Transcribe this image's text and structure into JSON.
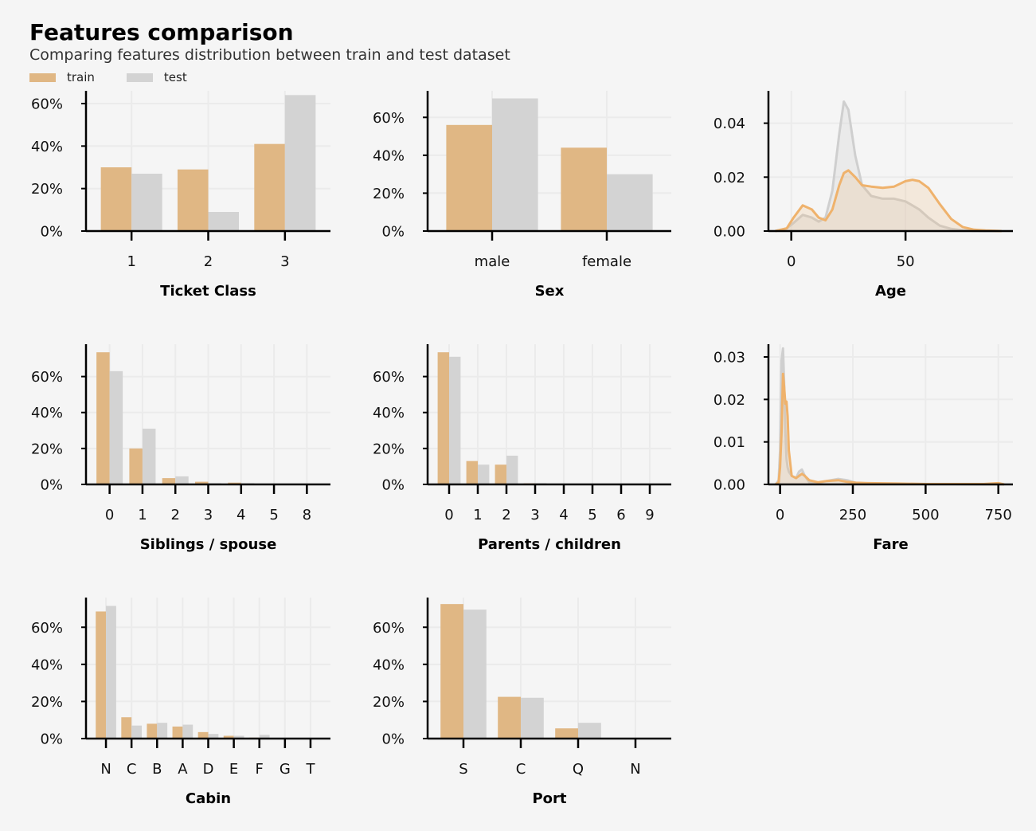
{
  "title": "Features comparison",
  "subtitle": "Comparing features distribution between train and test dataset",
  "colors": {
    "train": "#e0b784",
    "test": "#d3d3d3",
    "train_line": "#efb26c",
    "test_line": "#cfcfcf",
    "grid": "#ebebeb",
    "axis": "#000000"
  },
  "legend": [
    {
      "label": "train",
      "color": "#e0b784"
    },
    {
      "label": "test",
      "color": "#d3d3d3"
    }
  ],
  "chart_data": [
    {
      "type": "bar",
      "xlabel": "Ticket Class",
      "categories": [
        "1",
        "2",
        "3"
      ],
      "series": [
        {
          "name": "train",
          "values": [
            0.3,
            0.29,
            0.41
          ]
        },
        {
          "name": "test",
          "values": [
            0.27,
            0.09,
            0.64
          ]
        }
      ],
      "ylim": [
        0,
        0.66
      ],
      "yticks": [
        0,
        0.2,
        0.4,
        0.6
      ],
      "yticklabels": [
        "0%",
        "20%",
        "40%",
        "60%"
      ],
      "grid": true
    },
    {
      "type": "bar",
      "xlabel": "Sex",
      "categories": [
        "male",
        "female"
      ],
      "series": [
        {
          "name": "train",
          "values": [
            0.56,
            0.44
          ]
        },
        {
          "name": "test",
          "values": [
            0.7,
            0.3
          ]
        }
      ],
      "ylim": [
        0,
        0.74
      ],
      "yticks": [
        0,
        0.2,
        0.4,
        0.6
      ],
      "yticklabels": [
        "0%",
        "20%",
        "40%",
        "60%"
      ],
      "grid": true
    },
    {
      "type": "area",
      "xlabel": "Age",
      "x": [
        -7,
        -2,
        1,
        5,
        9,
        12,
        15,
        18,
        21,
        23,
        25,
        28,
        31,
        35,
        40,
        45,
        50,
        53,
        56,
        60,
        65,
        70,
        75,
        80,
        85,
        92
      ],
      "series": [
        {
          "name": "train",
          "values": [
            0,
            0.001,
            0.005,
            0.0095,
            0.008,
            0.005,
            0.004,
            0.008,
            0.017,
            0.0215,
            0.0225,
            0.02,
            0.017,
            0.0165,
            0.016,
            0.0165,
            0.0185,
            0.019,
            0.0185,
            0.016,
            0.01,
            0.0045,
            0.0015,
            0.0005,
            0.0002,
            0
          ]
        },
        {
          "name": "test",
          "values": [
            0,
            0.001,
            0.003,
            0.006,
            0.005,
            0.0035,
            0.005,
            0.015,
            0.036,
            0.048,
            0.045,
            0.028,
            0.017,
            0.013,
            0.012,
            0.012,
            0.011,
            0.0095,
            0.008,
            0.005,
            0.002,
            0.0008,
            0.0003,
            0.0001,
            0,
            0
          ]
        }
      ],
      "xlim": [
        -10,
        97
      ],
      "xticks": [
        0,
        50
      ],
      "xticklabels": [
        "0",
        "50"
      ],
      "ylim": [
        0,
        0.052
      ],
      "yticks": [
        0,
        0.02,
        0.04
      ],
      "yticklabels": [
        "0.00",
        "0.02",
        "0.04"
      ],
      "grid": true
    },
    {
      "type": "bar",
      "xlabel": "Siblings / spouse",
      "categories": [
        "0",
        "1",
        "2",
        "3",
        "4",
        "5",
        "8"
      ],
      "series": [
        {
          "name": "train",
          "values": [
            0.735,
            0.2,
            0.035,
            0.015,
            0.01,
            0.003,
            0.002
          ]
        },
        {
          "name": "test",
          "values": [
            0.63,
            0.31,
            0.045,
            0.007,
            0.007,
            0.002,
            0.003
          ]
        }
      ],
      "ylim": [
        0,
        0.78
      ],
      "yticks": [
        0,
        0.2,
        0.4,
        0.6
      ],
      "yticklabels": [
        "0%",
        "20%",
        "40%",
        "60%"
      ],
      "grid": true
    },
    {
      "type": "bar",
      "xlabel": "Parents / children",
      "categories": [
        "0",
        "1",
        "2",
        "3",
        "4",
        "5",
        "6",
        "9"
      ],
      "series": [
        {
          "name": "train",
          "values": [
            0.735,
            0.13,
            0.11,
            0.006,
            0.003,
            0.003,
            0.001,
            0
          ]
        },
        {
          "name": "test",
          "values": [
            0.71,
            0.11,
            0.16,
            0.007,
            0.002,
            0.002,
            0.002,
            0.002
          ]
        }
      ],
      "ylim": [
        0,
        0.78
      ],
      "yticks": [
        0,
        0.2,
        0.4,
        0.6
      ],
      "yticklabels": [
        "0%",
        "20%",
        "40%",
        "60%"
      ],
      "grid": true
    },
    {
      "type": "area",
      "xlabel": "Fare",
      "x": [
        -15,
        -5,
        0,
        5,
        10,
        14,
        18,
        22,
        26,
        30,
        40,
        55,
        65,
        75,
        85,
        100,
        130,
        160,
        200,
        230,
        260,
        300,
        400,
        500,
        600,
        700,
        750,
        770
      ],
      "series": [
        {
          "name": "train",
          "values": [
            0,
            0.0005,
            0.004,
            0.012,
            0.026,
            0.023,
            0.019,
            0.0195,
            0.016,
            0.008,
            0.002,
            0.0015,
            0.002,
            0.0025,
            0.002,
            0.001,
            0.0005,
            0.0008,
            0.001,
            0.0006,
            0.0004,
            0.0003,
            0.0002,
            0.0001,
            0.0001,
            0.0001,
            0.0003,
            0
          ]
        },
        {
          "name": "test",
          "values": [
            0,
            0.001,
            0.008,
            0.029,
            0.032,
            0.024,
            0.013,
            0.006,
            0.004,
            0.003,
            0.002,
            0.0015,
            0.003,
            0.0035,
            0.002,
            0.0005,
            0.0003,
            0.0008,
            0.0013,
            0.001,
            0.0004,
            0.0002,
            0.0001,
            0.0001,
            0.0001,
            0,
            0,
            0
          ]
        }
      ],
      "xlim": [
        -40,
        800
      ],
      "xticks": [
        0,
        250,
        500,
        750
      ],
      "xticklabels": [
        "0",
        "250",
        "500",
        "750"
      ],
      "ylim": [
        0,
        0.033
      ],
      "yticks": [
        0,
        0.01,
        0.02,
        0.03
      ],
      "yticklabels": [
        "0.00",
        "0.01",
        "0.02",
        "0.03"
      ],
      "grid": true
    },
    {
      "type": "bar",
      "xlabel": "Cabin",
      "categories": [
        "N",
        "C",
        "B",
        "A",
        "D",
        "E",
        "F",
        "G",
        "T"
      ],
      "series": [
        {
          "name": "train",
          "values": [
            0.685,
            0.115,
            0.08,
            0.065,
            0.035,
            0.015,
            0.005,
            0.002,
            0.001
          ]
        },
        {
          "name": "test",
          "values": [
            0.715,
            0.07,
            0.085,
            0.075,
            0.025,
            0.015,
            0.02,
            0.002,
            0
          ]
        }
      ],
      "ylim": [
        0,
        0.76
      ],
      "yticks": [
        0,
        0.2,
        0.4,
        0.6
      ],
      "yticklabels": [
        "0%",
        "20%",
        "40%",
        "60%"
      ],
      "grid": true
    },
    {
      "type": "bar",
      "xlabel": "Port",
      "categories": [
        "S",
        "C",
        "Q",
        "N"
      ],
      "series": [
        {
          "name": "train",
          "values": [
            0.725,
            0.225,
            0.055,
            0.002
          ]
        },
        {
          "name": "test",
          "values": [
            0.695,
            0.22,
            0.085,
            0
          ]
        }
      ],
      "ylim": [
        0,
        0.76
      ],
      "yticks": [
        0,
        0.2,
        0.4,
        0.6
      ],
      "yticklabels": [
        "0%",
        "20%",
        "40%",
        "60%"
      ],
      "grid": true
    }
  ]
}
